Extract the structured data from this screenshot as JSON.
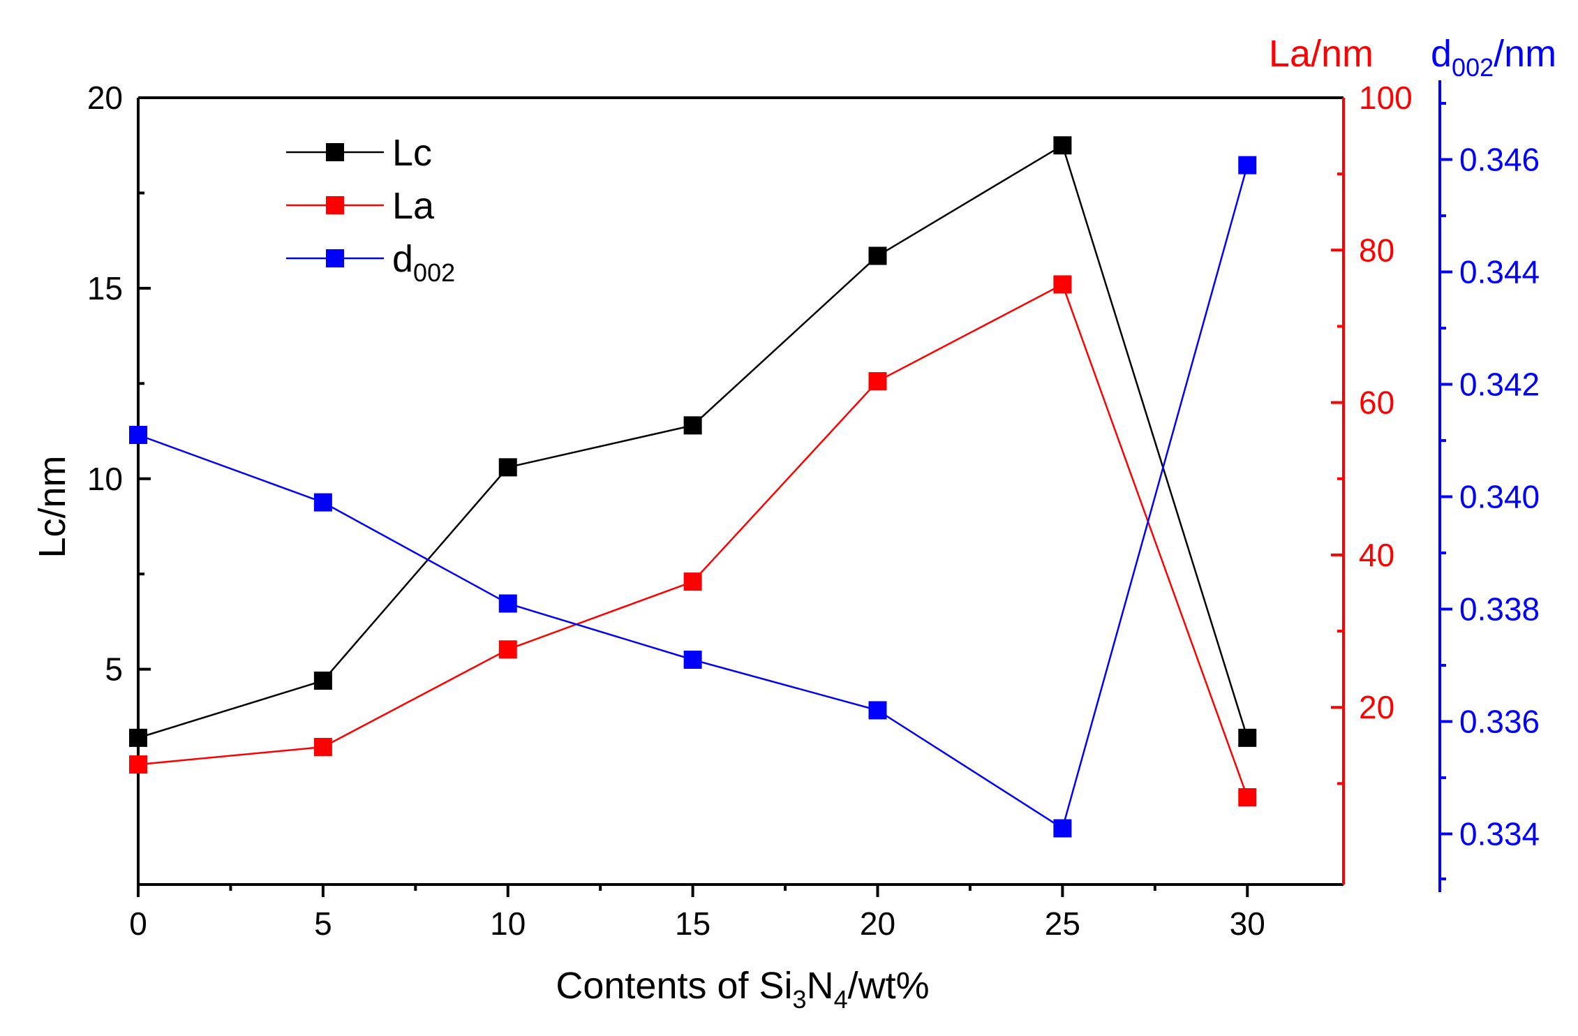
{
  "chart_data": {
    "type": "line",
    "x": [
      0,
      5,
      10,
      15,
      20,
      25,
      30
    ],
    "xlim": [
      0,
      32.6
    ],
    "x_ticks": [
      0,
      5,
      10,
      15,
      20,
      25,
      30
    ],
    "xlabel": {
      "before": "Contents of Si",
      "sub1": "3",
      "mid": "N",
      "sub2": "4",
      "after": "/wt%"
    },
    "left_axis": {
      "label": "Lc/nm",
      "range": [
        -0.65,
        20
      ],
      "ticks": [
        5,
        10,
        15,
        20
      ],
      "color": "#000000"
    },
    "right_axis_1": {
      "label": "La/nm",
      "range": [
        -3.25,
        100
      ],
      "ticks": [
        20,
        40,
        60,
        80,
        100
      ],
      "color": "#ff0000"
    },
    "right_axis_2": {
      "label_main": "d",
      "label_sub": "002",
      "label_after": "/nm",
      "range": [
        0.3331,
        0.3471
      ],
      "ticks": [
        0.334,
        0.336,
        0.338,
        0.34,
        0.342,
        0.344,
        0.346
      ],
      "tick_labels": [
        "0.334",
        "0.336",
        "0.338",
        "0.340",
        "0.342",
        "0.344",
        "0.346"
      ],
      "color": "#0000ff"
    },
    "series": [
      {
        "name": "Lc",
        "axis": "left_axis",
        "color": "#000000",
        "values": [
          3.2,
          4.7,
          10.3,
          11.4,
          15.85,
          18.75,
          3.2
        ]
      },
      {
        "name": "La",
        "axis": "right_axis_1",
        "color": "#ff0000",
        "values": [
          12.5,
          14.8,
          27.6,
          36.5,
          62.8,
          75.5,
          8.2
        ]
      },
      {
        "name": "d",
        "name_sub": "002",
        "axis": "right_axis_2",
        "color": "#0000ff",
        "values": [
          0.3411,
          0.3399,
          0.3381,
          0.3371,
          0.3362,
          0.3341,
          0.3459
        ]
      }
    ],
    "legend": {
      "placement": "top-left",
      "entries": [
        {
          "text": "Lc",
          "sub": ""
        },
        {
          "text": "La",
          "sub": ""
        },
        {
          "text": "d",
          "sub": "002"
        }
      ]
    }
  }
}
